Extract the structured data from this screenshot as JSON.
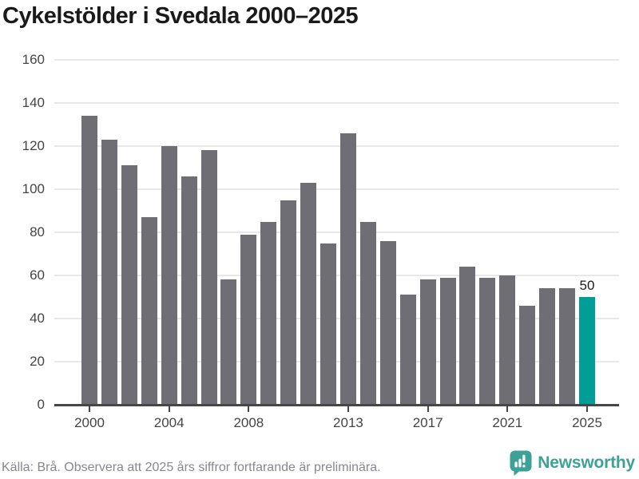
{
  "header": {
    "title": "Cykelstölder i Svedala 2000–2025"
  },
  "chart_data": {
    "type": "bar",
    "title": "Cykelstölder i Svedala 2000–2025",
    "categories": [
      2000,
      2001,
      2002,
      2003,
      2004,
      2005,
      2006,
      2007,
      2008,
      2009,
      2010,
      2011,
      2012,
      2013,
      2014,
      2015,
      2016,
      2017,
      2018,
      2019,
      2020,
      2021,
      2022,
      2023,
      2024,
      2025
    ],
    "values": [
      134,
      123,
      111,
      87,
      120,
      106,
      118,
      58,
      79,
      85,
      95,
      103,
      75,
      126,
      85,
      76,
      51,
      58,
      59,
      64,
      59,
      60,
      46,
      54,
      54,
      50
    ],
    "highlight_category": 2025,
    "value_labels": [
      {
        "category": 2025,
        "text": "50"
      }
    ],
    "ylim": [
      0,
      160
    ],
    "yticks": [
      0,
      20,
      40,
      60,
      80,
      100,
      120,
      140,
      160
    ],
    "xtick_labels": [
      "2000",
      "2004",
      "2008",
      "2013",
      "2017",
      "2021",
      "2025"
    ],
    "grid": true,
    "legend": "none",
    "colors": {
      "bar": "#6e6e74",
      "highlight": "#009e96",
      "gridline": "#e8e8e8",
      "axis": "#47474b",
      "tick_text": "#454545"
    }
  },
  "footer": {
    "source_note": "Källa: Brå. Observera att 2025 års siffror fortfarande är preliminära.",
    "brand": "Newsworthy",
    "brand_color": "#3da296"
  }
}
